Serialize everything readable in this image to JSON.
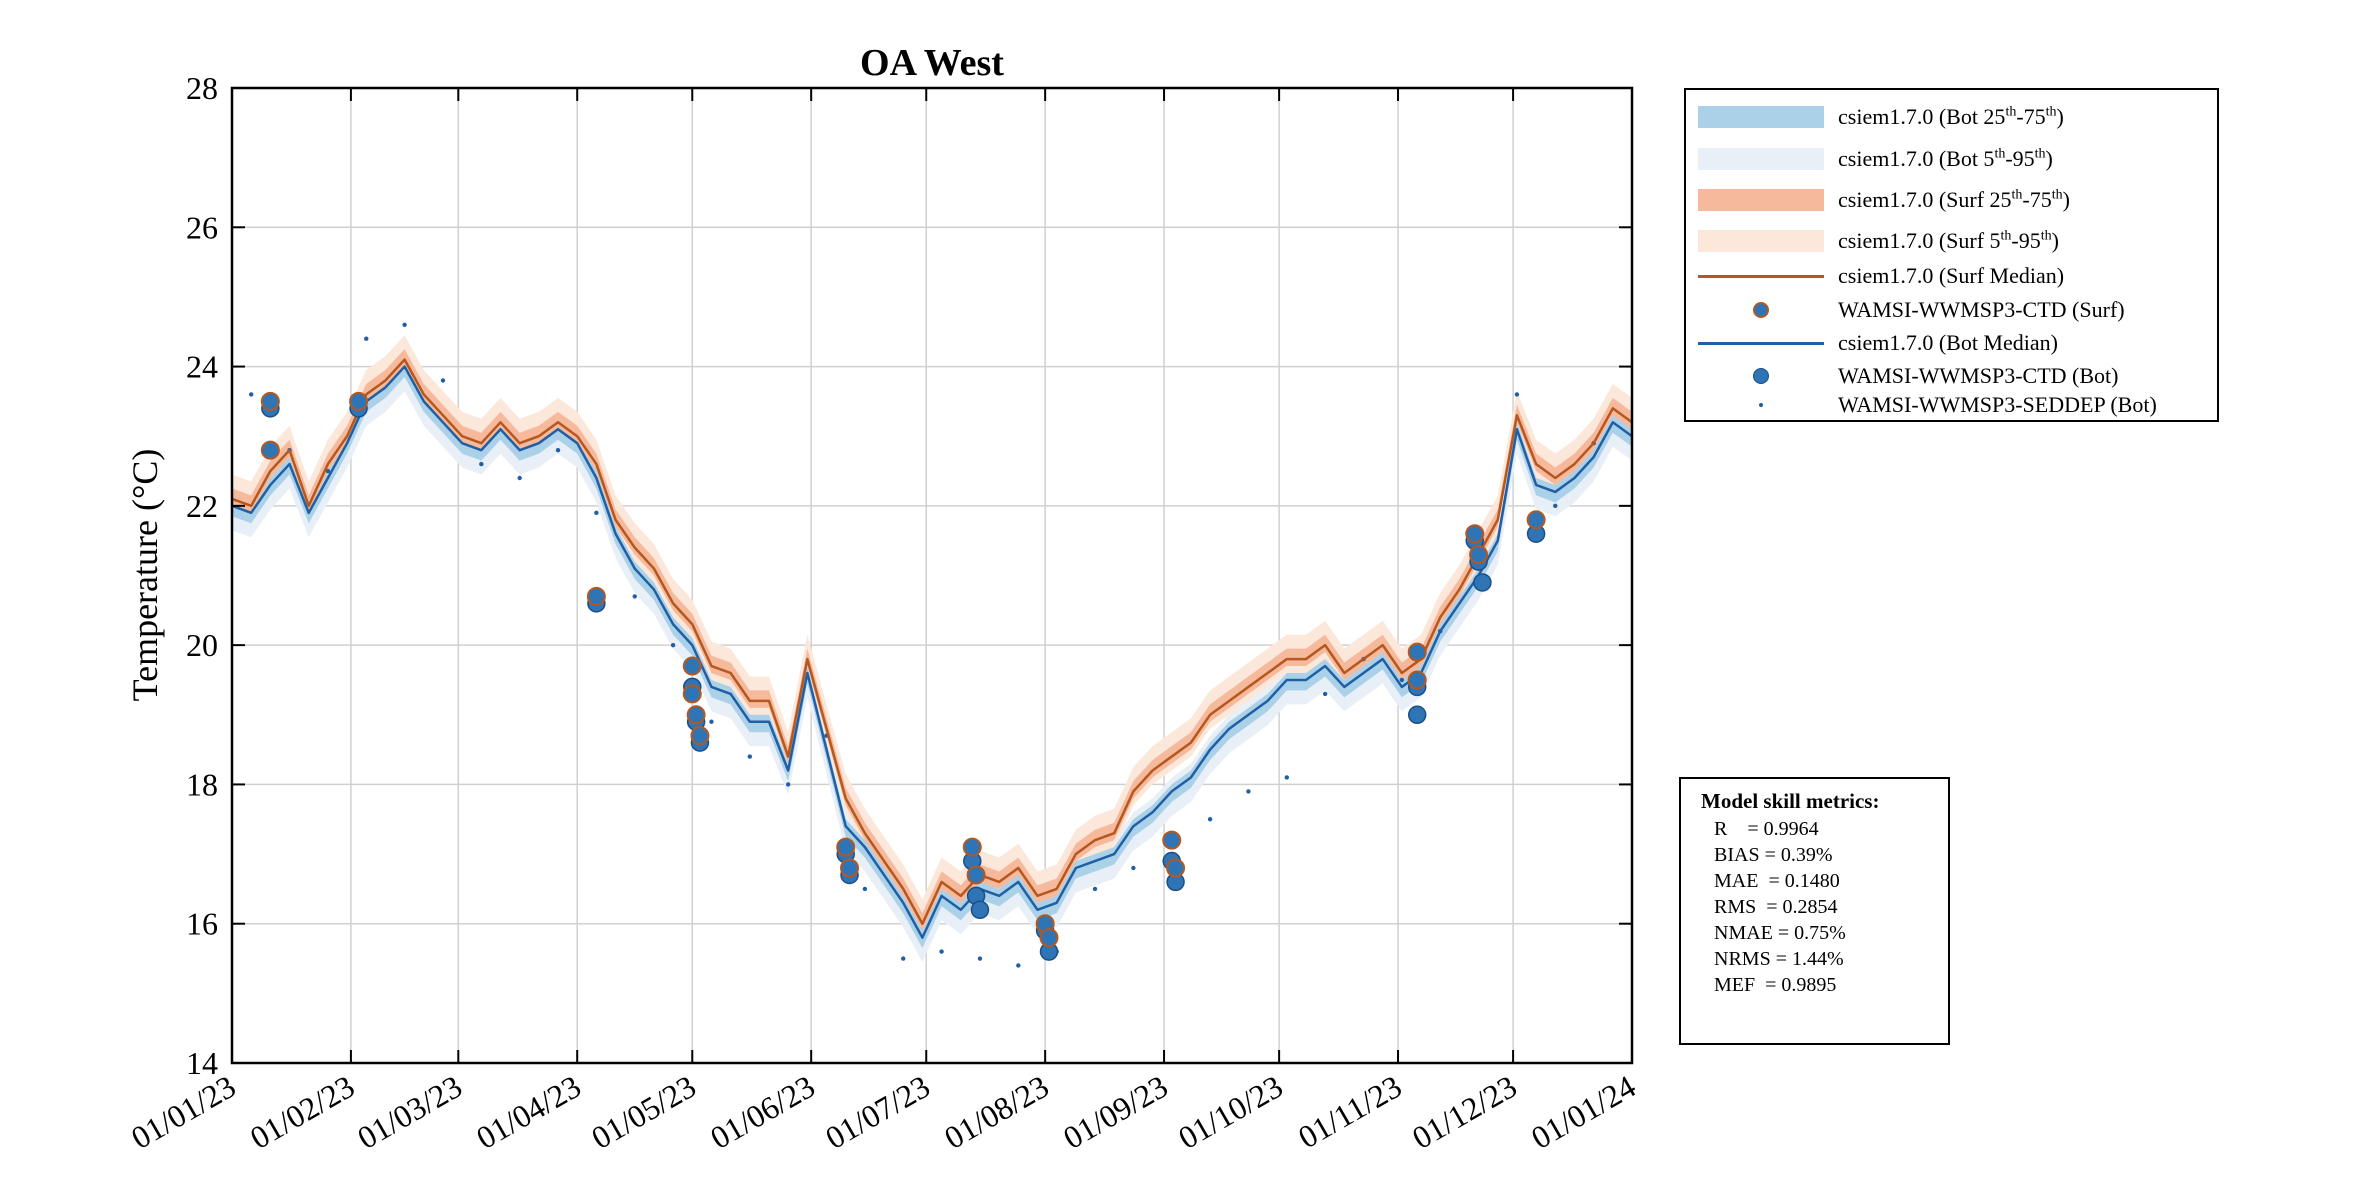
{
  "chart_data": {
    "type": "line",
    "title": "OA West",
    "ylabel": "Temperature (°C)",
    "xlabel": "",
    "ylim": [
      14,
      28
    ],
    "yticks": [
      14,
      16,
      18,
      20,
      22,
      24,
      26,
      28
    ],
    "xticks": [
      "01/01/23",
      "01/02/23",
      "01/03/23",
      "01/04/23",
      "01/05/23",
      "01/06/23",
      "01/07/23",
      "01/08/23",
      "01/09/23",
      "01/10/23",
      "01/11/23",
      "01/12/23",
      "01/01/24"
    ],
    "xtick_days": [
      0,
      31,
      59,
      90,
      120,
      151,
      181,
      212,
      243,
      273,
      304,
      334,
      365
    ],
    "grid": true,
    "series": [
      {
        "name": "csiem1.7.0 (Surf Median)",
        "color": "#b5581f",
        "x": [
          0,
          5,
          10,
          15,
          20,
          25,
          30,
          35,
          40,
          45,
          50,
          55,
          60,
          65,
          70,
          75,
          80,
          85,
          90,
          95,
          100,
          105,
          110,
          115,
          120,
          125,
          130,
          135,
          140,
          145,
          150,
          155,
          160,
          165,
          170,
          175,
          180,
          185,
          190,
          195,
          200,
          205,
          210,
          215,
          220,
          225,
          230,
          235,
          240,
          245,
          250,
          255,
          260,
          265,
          270,
          275,
          280,
          285,
          290,
          295,
          300,
          305,
          310,
          315,
          320,
          325,
          330,
          335,
          340,
          345,
          350,
          355,
          360,
          365
        ],
        "y": [
          22.1,
          22.0,
          22.5,
          22.8,
          22.0,
          22.6,
          23.0,
          23.6,
          23.8,
          24.1,
          23.6,
          23.3,
          23.0,
          22.9,
          23.2,
          22.9,
          23.0,
          23.2,
          23.0,
          22.6,
          21.8,
          21.4,
          21.1,
          20.6,
          20.3,
          19.7,
          19.6,
          19.2,
          19.2,
          18.4,
          19.8,
          18.8,
          17.8,
          17.3,
          16.9,
          16.5,
          16.0,
          16.6,
          16.4,
          16.7,
          16.6,
          16.8,
          16.4,
          16.5,
          17.0,
          17.2,
          17.3,
          17.9,
          18.2,
          18.4,
          18.6,
          19.0,
          19.2,
          19.4,
          19.6,
          19.8,
          19.8,
          20.0,
          19.6,
          19.8,
          20.0,
          19.6,
          19.8,
          20.4,
          20.8,
          21.3,
          21.8,
          23.3,
          22.6,
          22.4,
          22.6,
          22.9,
          23.4,
          23.2
        ]
      },
      {
        "name": "csiem1.7.0 (Bot Median)",
        "color": "#1f5fa6",
        "x": [
          0,
          5,
          10,
          15,
          20,
          25,
          30,
          35,
          40,
          45,
          50,
          55,
          60,
          65,
          70,
          75,
          80,
          85,
          90,
          95,
          100,
          105,
          110,
          115,
          120,
          125,
          130,
          135,
          140,
          145,
          150,
          155,
          160,
          165,
          170,
          175,
          180,
          185,
          190,
          195,
          200,
          205,
          210,
          215,
          220,
          225,
          230,
          235,
          240,
          245,
          250,
          255,
          260,
          265,
          270,
          275,
          280,
          285,
          290,
          295,
          300,
          305,
          310,
          315,
          320,
          325,
          330,
          335,
          340,
          345,
          350,
          355,
          360,
          365
        ],
        "y": [
          22.0,
          21.9,
          22.3,
          22.6,
          21.9,
          22.4,
          22.9,
          23.5,
          23.7,
          24.0,
          23.5,
          23.2,
          22.9,
          22.8,
          23.1,
          22.8,
          22.9,
          23.1,
          22.9,
          22.4,
          21.6,
          21.1,
          20.8,
          20.3,
          20.0,
          19.4,
          19.3,
          18.9,
          18.9,
          18.2,
          19.6,
          18.5,
          17.4,
          17.1,
          16.7,
          16.3,
          15.8,
          16.4,
          16.2,
          16.5,
          16.4,
          16.6,
          16.2,
          16.3,
          16.8,
          16.9,
          17.0,
          17.4,
          17.6,
          17.9,
          18.1,
          18.5,
          18.8,
          19.0,
          19.2,
          19.5,
          19.5,
          19.7,
          19.4,
          19.6,
          19.8,
          19.4,
          19.6,
          20.2,
          20.6,
          21.0,
          21.5,
          23.1,
          22.3,
          22.2,
          22.4,
          22.7,
          23.2,
          23.0
        ]
      },
      {
        "name": "WAMSI-WWMSP3-CTD (Surf)",
        "color": "#2f74b5",
        "x": [
          10,
          10,
          33,
          95,
          120,
          120,
          121,
          122,
          160,
          161,
          193,
          194,
          212,
          213,
          245,
          246,
          309,
          309,
          324,
          325,
          340
        ],
        "y": [
          23.5,
          22.8,
          23.5,
          20.7,
          19.7,
          19.3,
          19.0,
          18.7,
          17.1,
          16.8,
          17.1,
          16.7,
          16.0,
          15.8,
          17.2,
          16.8,
          19.9,
          19.5,
          21.6,
          21.3,
          21.8
        ]
      },
      {
        "name": "WAMSI-WWMSP3-CTD (Bot)",
        "color": "#2f74b5",
        "x": [
          10,
          33,
          95,
          120,
          121,
          122,
          160,
          161,
          193,
          194,
          195,
          212,
          213,
          245,
          246,
          309,
          309,
          324,
          325,
          326,
          340
        ],
        "y": [
          23.4,
          23.4,
          20.6,
          19.4,
          18.9,
          18.6,
          17.0,
          16.7,
          16.9,
          16.4,
          16.2,
          15.9,
          15.6,
          16.9,
          16.6,
          19.4,
          19.0,
          21.5,
          21.2,
          20.9,
          21.6
        ]
      },
      {
        "name": "WAMSI-WWMSP3-SEDDEP (Bot)",
        "color": "#1f5fa6",
        "x": [
          5,
          15,
          25,
          35,
          45,
          55,
          65,
          75,
          85,
          95,
          105,
          115,
          125,
          135,
          145,
          155,
          165,
          175,
          185,
          195,
          205,
          215,
          225,
          235,
          245,
          255,
          265,
          275,
          285,
          295,
          305,
          315,
          325,
          335,
          345,
          355
        ],
        "y": [
          23.6,
          22.8,
          22.5,
          24.4,
          24.6,
          23.8,
          22.6,
          22.4,
          22.8,
          21.9,
          20.7,
          20.0,
          18.9,
          18.4,
          18.0,
          18.7,
          16.5,
          15.5,
          15.6,
          15.5,
          15.4,
          15.6,
          16.5,
          16.8,
          17.2,
          17.5,
          17.9,
          18.1,
          19.3,
          19.8,
          19.5,
          20.2,
          21.6,
          23.6,
          22.0,
          22.9
        ]
      }
    ],
    "legend": {
      "position": "outside-right",
      "entries": [
        {
          "text": "csiem1.7.0 (Bot 25",
          "sup1": "th",
          "mid": "-75",
          "sup2": "th",
          "tail": ")",
          "style": "band",
          "color": "#abd1e8"
        },
        {
          "text": "csiem1.7.0 (Bot 5",
          "sup1": "th",
          "mid": "-95",
          "sup2": "th",
          "tail": ")",
          "style": "band",
          "color": "#e8eff7"
        },
        {
          "text": "csiem1.7.0 (Surf 25",
          "sup1": "th",
          "mid": "-75",
          "sup2": "th",
          "tail": ")",
          "style": "band",
          "color": "#f7b99c"
        },
        {
          "text": "csiem1.7.0 (Surf 5",
          "sup1": "th",
          "mid": "-95",
          "sup2": "th",
          "tail": ")",
          "style": "band",
          "color": "#fbe8db"
        },
        {
          "text": "csiem1.7.0 (Surf Median)",
          "style": "line",
          "color": "#b5581f"
        },
        {
          "text": "WAMSI-WWMSP3-CTD (Surf)",
          "style": "circle-orange-edge",
          "color": "#2f74b5"
        },
        {
          "text": "csiem1.7.0 (Bot Median)",
          "style": "line",
          "color": "#1f5fa6"
        },
        {
          "text": "WAMSI-WWMSP3-CTD (Bot)",
          "style": "circle",
          "color": "#2f74b5"
        },
        {
          "text": "WAMSI-WWMSP3-SEDDEP (Bot)",
          "style": "dot",
          "color": "#1f5fa6"
        }
      ]
    },
    "annotations": {
      "metrics_title": "Model skill metrics:",
      "metrics": [
        "R    = 0.9964",
        "BIAS = 0.39%",
        "MAE  = 0.1480",
        "RMS  = 0.2854",
        "NMAE = 0.75%",
        "NRMS = 1.44%",
        "MEF  = 0.9895"
      ]
    }
  }
}
